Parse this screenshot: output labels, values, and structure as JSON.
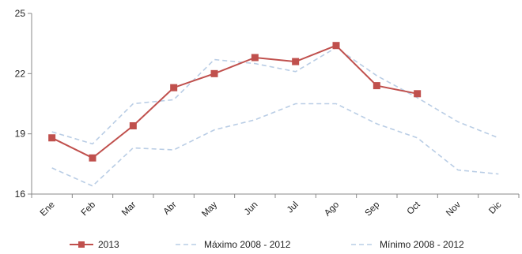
{
  "chart_data": {
    "type": "line",
    "categories": [
      "Ene",
      "Feb",
      "Mar",
      "Abr",
      "May",
      "Jun",
      "Jul",
      "Ago",
      "Sep",
      "Oct",
      "Nov",
      "Dic"
    ],
    "ylim": [
      16,
      25
    ],
    "yticks": [
      16,
      19,
      22,
      25
    ],
    "grid": false,
    "legend_position": "bottom",
    "series": [
      {
        "name": "2013",
        "style": "solid-square-markers",
        "color": "#c0504d",
        "values": [
          18.8,
          17.8,
          19.4,
          21.3,
          22.0,
          22.8,
          22.6,
          23.4,
          21.4,
          21.0,
          null,
          null
        ]
      },
      {
        "name": "Máximo 2008 - 2012",
        "style": "dashed",
        "color": "#b9cde5",
        "values": [
          19.1,
          18.5,
          20.5,
          20.7,
          22.7,
          22.5,
          22.1,
          23.3,
          21.9,
          20.8,
          19.6,
          18.8
        ]
      },
      {
        "name": "Mínimo 2008 - 2012",
        "style": "dashed",
        "color": "#b9cde5",
        "values": [
          17.3,
          16.4,
          18.3,
          18.2,
          19.2,
          19.7,
          20.5,
          20.5,
          19.5,
          18.8,
          17.2,
          17.0
        ]
      }
    ]
  }
}
